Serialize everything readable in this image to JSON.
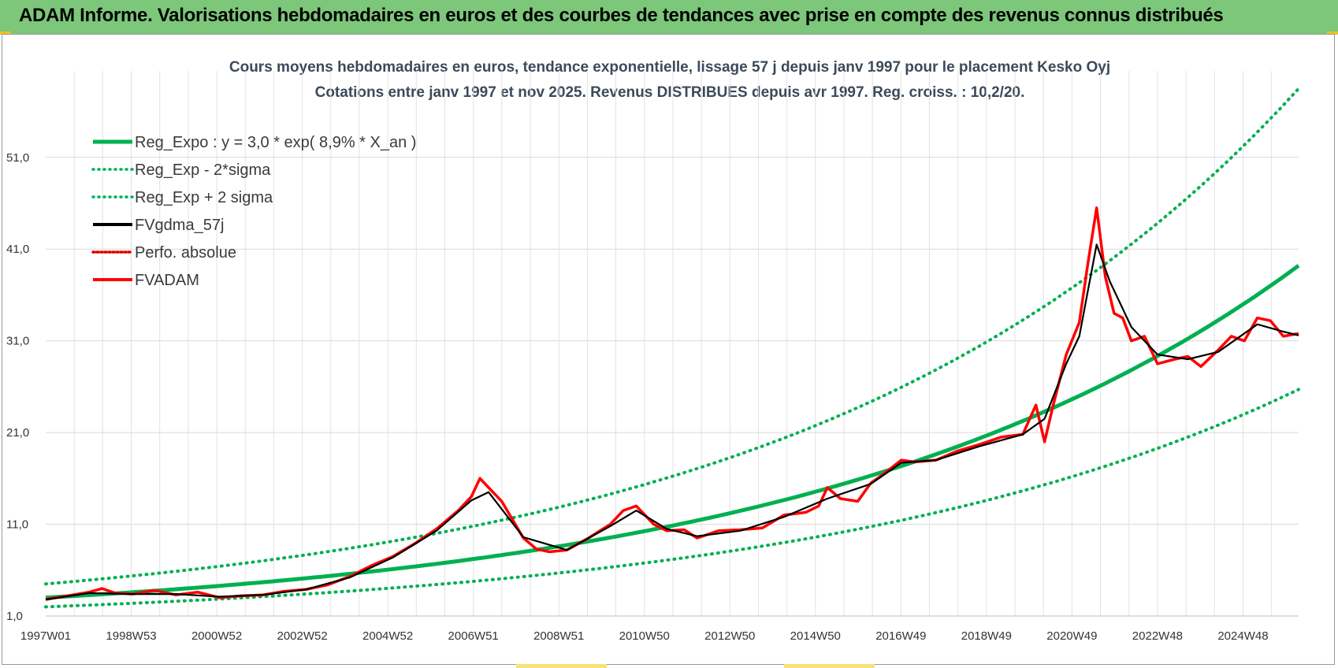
{
  "banner": {
    "title": "ADAM Informe. Valorisations hebdomadaires en euros et des courbes de tendances avec prise en compte des revenus connus distribués"
  },
  "chart_data": {
    "type": "line",
    "title": "Cours moyens hebdomadaires en euros, tendance exponentielle, lissage 57 j depuis janv 1997  pour le  placement Kesko Oyj",
    "subtitle": "Cotations entre janv 1997 et nov 2025. Revenus DISTRIBUES depuis avr 1997.  Reg. croiss. : 10,2/20.",
    "ylim": [
      1,
      60
    ],
    "yticks": [
      "1,0",
      "11,0",
      "21,0",
      "31,0",
      "41,0",
      "51,0"
    ],
    "xlim": [
      1997.0,
      2025.85
    ],
    "xticks": [
      "1997W01",
      "1998W53",
      "2000W52",
      "2002W52",
      "2004W52",
      "2006W51",
      "2008W51",
      "2010W50",
      "2012W50",
      "2014W50",
      "2016W49",
      "2018W49",
      "2020W49",
      "2022W48",
      "2024W48"
    ],
    "legend_position": "top-left",
    "grid": true,
    "colors": {
      "reg": "#00b050",
      "sigma": "#00b050",
      "fvgdma": "#000000",
      "perfo": "#e00000",
      "fvadam": "#ff0000"
    },
    "legend": [
      {
        "label": "Reg_Expo : y = 3,0 * exp( 8,9% *  X_an )",
        "color": "#00b050",
        "style": "solid"
      },
      {
        "label": "Reg_Exp - 2*sigma",
        "color": "#00b050",
        "style": "dotted"
      },
      {
        "label": "Reg_Exp + 2 sigma",
        "color": "#00b050",
        "style": "dotted"
      },
      {
        "label": "FVgdma_57j",
        "color": "#000000",
        "style": "solid"
      },
      {
        "label": "Perfo. absolue",
        "color": "#e00000",
        "style": "dotted"
      },
      {
        "label": "FVADAM",
        "color": "#ff0000",
        "style": "solid"
      }
    ],
    "series": [
      {
        "name": "Reg_Expo : y = 3,0 * exp( 8,9% *  X_an )",
        "style": "solid",
        "x": [
          1997.0,
          2001.0,
          2005.0,
          2009.0,
          2013.0,
          2017.0,
          2020.0,
          2023.0,
          2025.85
        ],
        "y": [
          3.0,
          4.3,
          5.9,
          8.3,
          11.7,
          16.8,
          22.4,
          30.2,
          39.2
        ]
      },
      {
        "name": "Reg_Exp - 2*sigma",
        "style": "dotted",
        "x": [
          1997.0,
          2001.0,
          2005.0,
          2009.0,
          2013.0,
          2017.0,
          2020.0,
          2023.0,
          2025.85
        ],
        "y": [
          2.0,
          2.9,
          4.0,
          5.6,
          7.7,
          11.0,
          14.5,
          19.4,
          25.7
        ]
      },
      {
        "name": "Reg_Exp + 2 sigma",
        "style": "dotted",
        "x": [
          1997.0,
          2001.0,
          2005.0,
          2009.0,
          2013.0,
          2017.0,
          2020.0,
          2023.0,
          2025.85
        ],
        "y": [
          4.5,
          6.4,
          8.9,
          12.5,
          17.8,
          25.5,
          34.0,
          45.5,
          58.5
        ]
      },
      {
        "name": "FVADAM",
        "style": "solid",
        "x": [
          1997.0,
          1997.5,
          1998.0,
          1998.3,
          1998.6,
          1999.0,
          1999.5,
          2000.0,
          2000.5,
          2001.0,
          2001.5,
          2002.0,
          2002.5,
          2003.0,
          2003.5,
          2004.0,
          2004.5,
          2005.0,
          2005.5,
          2006.0,
          2006.5,
          2006.8,
          2007.0,
          2007.2,
          2007.5,
          2008.0,
          2008.3,
          2008.6,
          2009.0,
          2009.5,
          2010.0,
          2010.3,
          2010.6,
          2011.0,
          2011.3,
          2011.7,
          2012.0,
          2012.5,
          2013.0,
          2013.5,
          2014.0,
          2014.5,
          2014.8,
          2015.0,
          2015.3,
          2015.7,
          2016.0,
          2016.3,
          2016.7,
          2017.0,
          2017.5,
          2018.0,
          2018.5,
          2019.0,
          2019.5,
          2019.8,
          2020.0,
          2020.2,
          2020.5,
          2020.8,
          2021.0,
          2021.2,
          2021.4,
          2021.6,
          2021.8,
          2022.0,
          2022.3,
          2022.6,
          2023.0,
          2023.3,
          2023.6,
          2024.0,
          2024.3,
          2024.6,
          2024.9,
          2025.2,
          2025.5,
          2025.85
        ],
        "y": [
          2.8,
          3.2,
          3.6,
          4.0,
          3.5,
          3.4,
          3.8,
          3.3,
          3.6,
          3.0,
          3.2,
          3.3,
          3.7,
          3.9,
          4.4,
          5.3,
          6.5,
          7.5,
          8.9,
          10.5,
          12.5,
          14.0,
          16.0,
          15.0,
          13.5,
          9.5,
          8.3,
          8.0,
          8.2,
          9.5,
          11.0,
          12.5,
          13.0,
          11.0,
          10.3,
          10.4,
          9.5,
          10.3,
          10.4,
          10.6,
          12.0,
          12.3,
          13.0,
          15.0,
          13.8,
          13.5,
          15.5,
          16.5,
          18.0,
          17.8,
          18.0,
          19.0,
          19.7,
          20.5,
          20.8,
          24.0,
          20.0,
          24.0,
          29.5,
          33.0,
          39.5,
          45.5,
          38.0,
          34.0,
          33.5,
          31.0,
          31.5,
          28.5,
          29.0,
          29.3,
          28.2,
          30.0,
          31.5,
          31.0,
          33.5,
          33.2,
          31.5,
          31.8
        ]
      },
      {
        "name": "FVgdma_57j",
        "style": "solid",
        "x": [
          1997.0,
          1998.0,
          1999.0,
          2000.0,
          2001.0,
          2002.0,
          2003.0,
          2004.0,
          2005.0,
          2006.0,
          2006.8,
          2007.2,
          2008.0,
          2009.0,
          2010.0,
          2010.6,
          2011.3,
          2012.0,
          2013.0,
          2014.0,
          2015.0,
          2016.0,
          2016.7,
          2017.5,
          2018.5,
          2019.5,
          2020.0,
          2020.5,
          2020.8,
          2021.0,
          2021.2,
          2021.5,
          2022.0,
          2022.6,
          2023.3,
          2024.0,
          2024.9,
          2025.5,
          2025.85
        ],
        "y": [
          2.8,
          3.5,
          3.4,
          3.4,
          3.1,
          3.3,
          3.9,
          5.2,
          7.4,
          10.3,
          13.6,
          14.5,
          9.6,
          8.2,
          10.8,
          12.5,
          10.5,
          9.7,
          10.3,
          11.8,
          13.8,
          15.4,
          17.7,
          18.0,
          19.5,
          20.8,
          22.5,
          28.5,
          31.5,
          36.5,
          41.5,
          37.5,
          32.5,
          29.5,
          29.0,
          29.8,
          32.8,
          32.0,
          31.6
        ]
      },
      {
        "name": "Perfo. absolue",
        "style": "dotted",
        "x": [
          1997.0,
          2000.0,
          2005.0,
          2007.0,
          2010.0,
          2015.0,
          2020.0,
          2021.2,
          2025.85
        ],
        "y": [
          2.8,
          3.4,
          7.4,
          15.0,
          10.8,
          13.8,
          22.5,
          41.5,
          31.6
        ]
      }
    ]
  }
}
